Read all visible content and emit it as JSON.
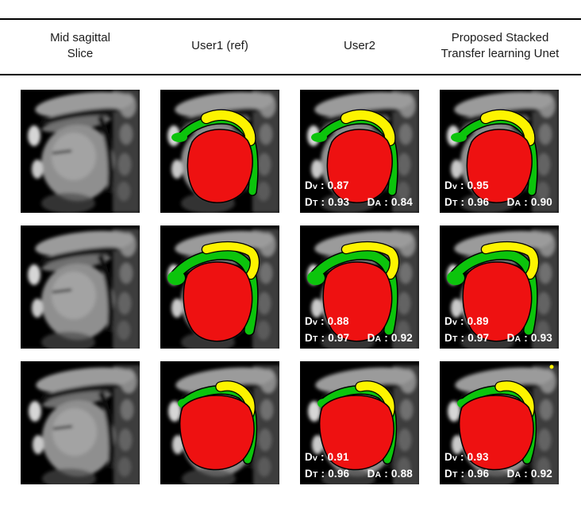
{
  "header": {
    "columns": [
      {
        "id": "mid-sagittal",
        "label": "Mid sagittal\nSlice"
      },
      {
        "id": "user1",
        "label": "User1 (ref)"
      },
      {
        "id": "user2",
        "label": "User2"
      },
      {
        "id": "proposed",
        "label": "Proposed Stacked\nTransfer learning Unet"
      }
    ]
  },
  "metric_labels": {
    "d": "D",
    "v": "v",
    "t": "T",
    "a": "A",
    "sep": " : "
  },
  "colors": {
    "tongue_red": "#ee1111",
    "constrictor_green": "#0cc40c",
    "velum_yellow": "#fdf400",
    "rule_black": "#000000",
    "metric_text": "#ffffff",
    "background": "#ffffff"
  },
  "grid": {
    "rows": [
      {
        "cells": [
          {
            "kind": "mri"
          },
          {
            "kind": "segmentation"
          },
          {
            "kind": "segmentation",
            "metrics": {
              "dv": "0.87",
              "dt": "0.93",
              "da": "0.84"
            }
          },
          {
            "kind": "segmentation",
            "metrics": {
              "dv": "0.95",
              "dt": "0.96",
              "da": "0.90"
            }
          }
        ]
      },
      {
        "cells": [
          {
            "kind": "mri"
          },
          {
            "kind": "segmentation"
          },
          {
            "kind": "segmentation",
            "metrics": {
              "dv": "0.88",
              "dt": "0.97",
              "da": "0.92"
            }
          },
          {
            "kind": "segmentation",
            "metrics": {
              "dv": "0.89",
              "dt": "0.97",
              "da": "0.93"
            }
          }
        ]
      },
      {
        "cells": [
          {
            "kind": "mri"
          },
          {
            "kind": "segmentation"
          },
          {
            "kind": "segmentation",
            "metrics": {
              "dv": "0.91",
              "dt": "0.96",
              "da": "0.88"
            }
          },
          {
            "kind": "segmentation",
            "metrics": {
              "dv": "0.93",
              "dt": "0.96",
              "da": "0.92"
            }
          }
        ]
      }
    ]
  }
}
